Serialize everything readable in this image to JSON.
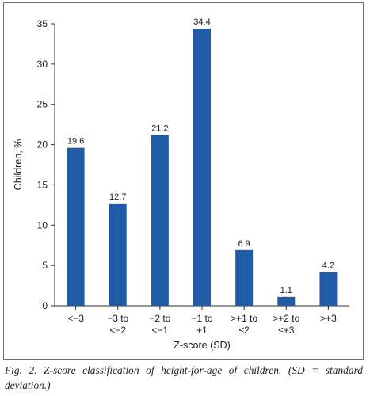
{
  "chart_data": {
    "type": "bar",
    "categories": [
      [
        "<−3"
      ],
      [
        "−3 to",
        "<−2"
      ],
      [
        "−2 to",
        "<−1"
      ],
      [
        "−1 to",
        "+1"
      ],
      [
        ">+1 to",
        "≤2"
      ],
      [
        ">+2 to",
        "≤+3"
      ],
      [
        ">+3"
      ]
    ],
    "values": [
      19.6,
      12.7,
      21.2,
      34.4,
      6.9,
      1.1,
      4.2
    ],
    "data_labels": [
      "19.6",
      "12.7",
      "21.2",
      "34.4",
      "6.9",
      "1.1",
      "4.2"
    ],
    "xlabel": "Z-score (SD)",
    "ylabel": "Children, %",
    "ylim": [
      0,
      35
    ],
    "yticks": [
      0,
      5,
      10,
      15,
      20,
      25,
      30,
      35
    ],
    "grid": false,
    "bar_color": "#1f5ba6"
  },
  "caption": "Fig. 2. Z-score classification of height-for-age of children. (SD = standard deviation.)"
}
